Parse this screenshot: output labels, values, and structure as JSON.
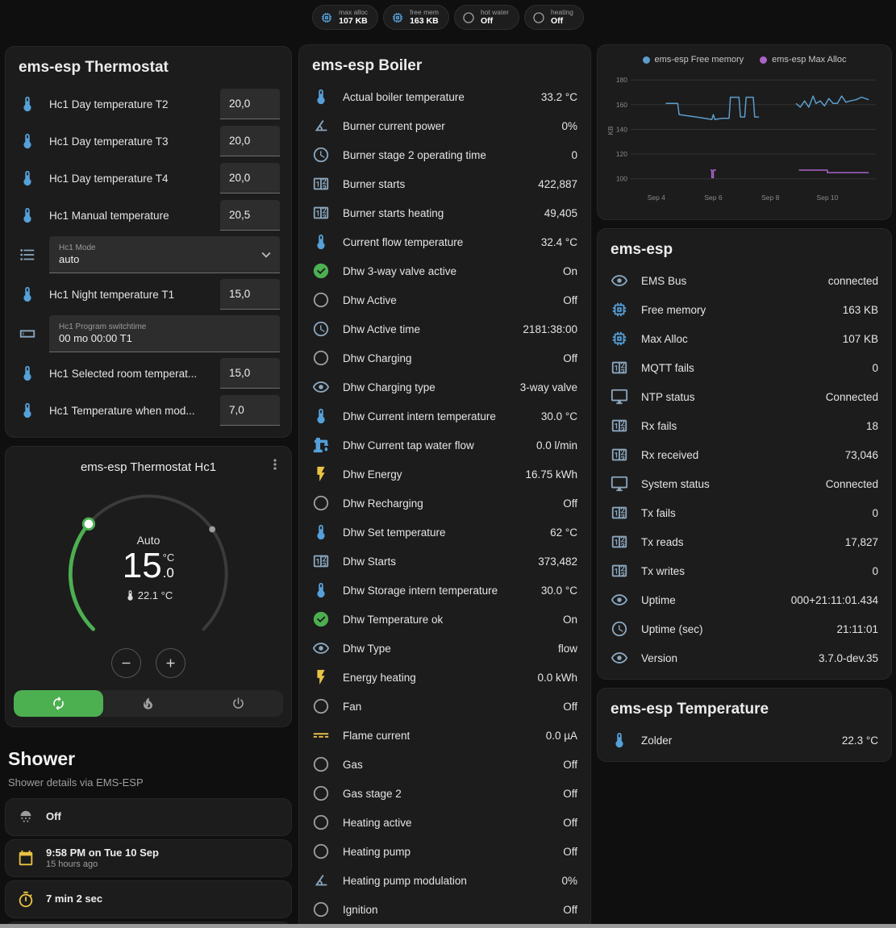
{
  "theme": {
    "accent_green": "#4caf50",
    "icon_blue": "#55a0d9",
    "icon_bluegray": "#8ba7bf",
    "icon_amber": "#e9c344"
  },
  "header": {
    "badges": [
      {
        "icon": "chip",
        "label": "max alloc",
        "value": "107 KB"
      },
      {
        "icon": "chip",
        "label": "free mem",
        "value": "163 KB"
      },
      {
        "icon": "circle-outline",
        "label": "hot water",
        "value": "Off"
      },
      {
        "icon": "circle-outline",
        "label": "heating",
        "value": "Off"
      }
    ]
  },
  "thermostat_card": {
    "title": "ems-esp Thermostat",
    "rows": [
      {
        "type": "number",
        "icon": "thermometer",
        "name": "Hc1 Day temperature T2",
        "value": "20,0"
      },
      {
        "type": "number",
        "icon": "thermometer",
        "name": "Hc1 Day temperature T3",
        "value": "20,0"
      },
      {
        "type": "number",
        "icon": "thermometer",
        "name": "Hc1 Day temperature T4",
        "value": "20,0"
      },
      {
        "type": "number",
        "icon": "thermometer",
        "name": "Hc1 Manual temperature",
        "value": "20,5"
      },
      {
        "type": "select",
        "icon": "list",
        "label": "Hc1 Mode",
        "value": "auto",
        "chevron": "chevron-down"
      },
      {
        "type": "number",
        "icon": "thermometer",
        "name": "Hc1 Night temperature T1",
        "value": "15,0"
      },
      {
        "type": "text",
        "icon": "textbox",
        "label": "Hc1 Program switchtime",
        "value": "00 mo 00:00 T1"
      },
      {
        "type": "number",
        "icon": "thermometer",
        "name": "Hc1 Selected room temperat...",
        "value": "15,0"
      },
      {
        "type": "number",
        "icon": "thermometer",
        "name": "Hc1 Temperature when mod...",
        "value": "7,0"
      }
    ]
  },
  "dial_card": {
    "title": "ems-esp Thermostat Hc1",
    "menu_icon": "dots-vertical",
    "mode_label": "Auto",
    "temp_int": "15",
    "temp_dec": ".0",
    "temp_unit": "°C",
    "current_icon": "thermometer",
    "current_temp": "22.1 °C",
    "decrease_icon": "minus",
    "increase_icon": "plus",
    "modes": [
      {
        "name": "auto",
        "icon": "autorenew",
        "active": true
      },
      {
        "name": "heat",
        "icon": "fire",
        "active": false
      },
      {
        "name": "off",
        "icon": "power",
        "active": false
      }
    ]
  },
  "shower_section": {
    "title": "Shower",
    "subtitle": "Shower details via EMS-ESP",
    "cards": [
      {
        "layout": "row",
        "icon": "shower",
        "value": "Off"
      },
      {
        "layout": "row",
        "icon": "calendar",
        "value": "9:58 PM on Tue 10 Sep",
        "secondary": "15 hours ago"
      },
      {
        "layout": "row",
        "icon": "timer",
        "value": "7 min 2 sec"
      },
      {
        "layout": "center",
        "icon": "snowflake"
      }
    ]
  },
  "boiler_card": {
    "title": "ems-esp Boiler",
    "rows": [
      {
        "icon": "thermometer",
        "name": "Actual boiler temperature",
        "value": "33.2 °C"
      },
      {
        "icon": "angle",
        "name": "Burner current power",
        "value": "0%"
      },
      {
        "icon": "clock",
        "name": "Burner stage 2 operating time",
        "value": "0"
      },
      {
        "icon": "counter",
        "name": "Burner starts",
        "value": "422,887"
      },
      {
        "icon": "counter",
        "name": "Burner starts heating",
        "value": "49,405"
      },
      {
        "icon": "thermometer",
        "name": "Current flow temperature",
        "value": "32.4 °C"
      },
      {
        "icon": "check-circle",
        "name": "Dhw 3-way valve active",
        "value": "On"
      },
      {
        "icon": "circle-outline",
        "name": "Dhw Active",
        "value": "Off"
      },
      {
        "icon": "clock",
        "name": "Dhw Active time",
        "value": "2181:38:00"
      },
      {
        "icon": "circle-outline",
        "name": "Dhw Charging",
        "value": "Off"
      },
      {
        "icon": "eye",
        "name": "Dhw Charging type",
        "value": "3-way valve"
      },
      {
        "icon": "thermometer",
        "name": "Dhw Current intern temperature",
        "value": "30.0 °C"
      },
      {
        "icon": "water-pump",
        "name": "Dhw Current tap water flow",
        "value": "0.0 l/min"
      },
      {
        "icon": "lightning",
        "name": "Dhw Energy",
        "value": "16.75 kWh"
      },
      {
        "icon": "circle-outline",
        "name": "Dhw Recharging",
        "value": "Off"
      },
      {
        "icon": "thermometer",
        "name": "Dhw Set temperature",
        "value": "62 °C"
      },
      {
        "icon": "counter",
        "name": "Dhw Starts",
        "value": "373,482"
      },
      {
        "icon": "thermometer",
        "name": "Dhw Storage intern temperature",
        "value": "30.0 °C"
      },
      {
        "icon": "check-circle",
        "name": "Dhw Temperature ok",
        "value": "On"
      },
      {
        "icon": "eye",
        "name": "Dhw Type",
        "value": "flow"
      },
      {
        "icon": "lightning",
        "name": "Energy heating",
        "value": "0.0 kWh"
      },
      {
        "icon": "circle-outline",
        "name": "Fan",
        "value": "Off"
      },
      {
        "icon": "current-dc",
        "name": "Flame current",
        "value": "0.0 µA"
      },
      {
        "icon": "circle-outline",
        "name": "Gas",
        "value": "Off"
      },
      {
        "icon": "circle-outline",
        "name": "Gas stage 2",
        "value": "Off"
      },
      {
        "icon": "circle-outline",
        "name": "Heating active",
        "value": "Off"
      },
      {
        "icon": "circle-outline",
        "name": "Heating pump",
        "value": "Off"
      },
      {
        "icon": "angle",
        "name": "Heating pump modulation",
        "value": "0%"
      },
      {
        "icon": "circle-outline",
        "name": "Ignition",
        "value": "Off"
      }
    ]
  },
  "status_card": {
    "title": "ems-esp",
    "rows": [
      {
        "icon": "eye",
        "name": "EMS Bus",
        "value": "connected"
      },
      {
        "icon": "chip",
        "name": "Free memory",
        "value": "163 KB"
      },
      {
        "icon": "chip",
        "name": "Max Alloc",
        "value": "107 KB"
      },
      {
        "icon": "counter",
        "name": "MQTT fails",
        "value": "0"
      },
      {
        "icon": "monitor",
        "name": "NTP status",
        "value": "Connected"
      },
      {
        "icon": "counter",
        "name": "Rx fails",
        "value": "18"
      },
      {
        "icon": "counter",
        "name": "Rx received",
        "value": "73,046"
      },
      {
        "icon": "monitor",
        "name": "System status",
        "value": "Connected"
      },
      {
        "icon": "counter",
        "name": "Tx fails",
        "value": "0"
      },
      {
        "icon": "counter",
        "name": "Tx reads",
        "value": "17,827"
      },
      {
        "icon": "counter",
        "name": "Tx writes",
        "value": "0"
      },
      {
        "icon": "eye",
        "name": "Uptime",
        "value": "000+21:11:01.434"
      },
      {
        "icon": "clock",
        "name": "Uptime (sec)",
        "value": "21:11:01"
      },
      {
        "icon": "eye",
        "name": "Version",
        "value": "3.7.0-dev.35"
      }
    ]
  },
  "temperature_card": {
    "title": "ems-esp Temperature",
    "rows": [
      {
        "icon": "thermometer",
        "name": "Zolder",
        "value": "22.3 °C"
      }
    ]
  },
  "chart_data": {
    "type": "line",
    "title": "",
    "xlabel": "",
    "ylabel": "KB",
    "ylim": [
      92,
      186
    ],
    "yticks": [
      100,
      120,
      140,
      160,
      180
    ],
    "xlim": [
      -0.9,
      7.7
    ],
    "xticks": [
      {
        "x": 0,
        "label": "Sep 4"
      },
      {
        "x": 2,
        "label": "Sep 6"
      },
      {
        "x": 4,
        "label": "Sep 8"
      },
      {
        "x": 6,
        "label": "Sep 10"
      }
    ],
    "grid": true,
    "legend_position": "top",
    "legend": [
      {
        "label": "ems-esp Free memory",
        "color": "#5c9ccc"
      },
      {
        "label": "ems-esp Max Alloc",
        "color": "#ab63c8"
      }
    ],
    "series": [
      {
        "name": "ems-esp Free memory",
        "color": "#5c9ccc",
        "points": [
          [
            0.33,
            161
          ],
          [
            0.75,
            161
          ],
          [
            0.8,
            152
          ],
          [
            1.1,
            151
          ],
          [
            1.4,
            150
          ],
          [
            1.7,
            149
          ],
          [
            1.95,
            148
          ],
          [
            2.0,
            152
          ],
          [
            2.05,
            148
          ],
          [
            2.3,
            149
          ],
          [
            2.55,
            149
          ],
          [
            2.6,
            166
          ],
          [
            2.9,
            166
          ],
          [
            2.95,
            150
          ],
          [
            3.1,
            150
          ],
          [
            3.15,
            166
          ],
          [
            3.4,
            166
          ],
          [
            3.45,
            150
          ],
          [
            3.6,
            150
          ],
          null,
          [
            4.9,
            161
          ],
          [
            5.05,
            158
          ],
          [
            5.2,
            163
          ],
          [
            5.35,
            158
          ],
          [
            5.5,
            167
          ],
          [
            5.6,
            161
          ],
          [
            5.75,
            163
          ],
          [
            5.9,
            159
          ],
          [
            6.05,
            165
          ],
          [
            6.2,
            161
          ],
          [
            6.35,
            161
          ],
          [
            6.5,
            167
          ],
          [
            6.65,
            162
          ],
          [
            6.8,
            163
          ],
          [
            7.0,
            164
          ],
          [
            7.2,
            166
          ],
          [
            7.45,
            164
          ]
        ]
      },
      {
        "name": "ems-esp Max Alloc",
        "color": "#ab63c8",
        "points": [
          [
            1.9,
            107
          ],
          [
            1.95,
            107
          ],
          [
            1.95,
            101
          ],
          [
            2.0,
            101
          ],
          [
            2.0,
            107
          ],
          [
            2.1,
            107
          ],
          null,
          [
            5.0,
            107
          ],
          [
            6.0,
            107
          ],
          [
            6.0,
            105
          ],
          [
            7.45,
            105
          ]
        ]
      }
    ]
  }
}
